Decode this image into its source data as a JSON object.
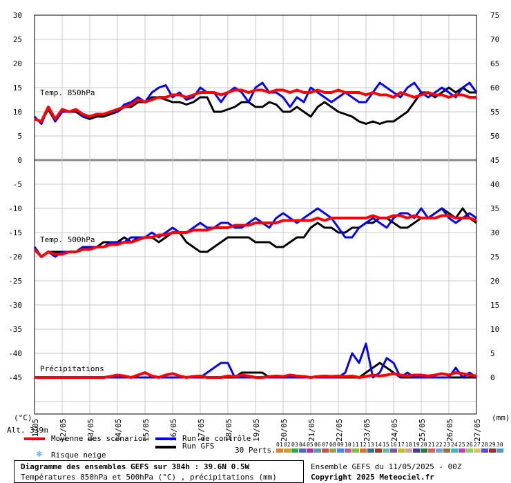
{
  "chart_data": {
    "type": "line",
    "left_axis_ticks": [
      "30",
      "25",
      "20",
      "15",
      "10",
      "5",
      "0",
      "-5",
      "-10",
      "-15",
      "-20",
      "-25",
      "-30",
      "-35",
      "-40",
      "-45"
    ],
    "right_axis_ticks": [
      "75",
      "70",
      "65",
      "60",
      "55",
      "50",
      "45",
      "40",
      "35",
      "30",
      "25",
      "20",
      "15",
      "10",
      "5",
      "0"
    ],
    "x_ticks": [
      "11/05",
      "12/05",
      "13/05",
      "14/05",
      "15/05",
      "16/05",
      "17/05",
      "18/05",
      "19/05",
      "20/05",
      "21/05",
      "22/05",
      "23/05",
      "24/05",
      "25/05",
      "26/05",
      "27/05"
    ],
    "x_unit_left": "(°C)",
    "x_unit_right": "(mm)",
    "ylim_left": [
      -45,
      30
    ],
    "panel_labels": {
      "t850": "Temp. 850hPa",
      "t500": "Temp. 500hPa",
      "precip": "Précipitations"
    },
    "altitude": "Alt. 339m",
    "series": [
      {
        "name": "Moyenne des scénarios",
        "color": "#ff0000",
        "t850": [
          8.5,
          8,
          11,
          8.5,
          10.5,
          10,
          10.5,
          9.5,
          9,
          9.5,
          9.5,
          10,
          10.5,
          11,
          11.5,
          12.5,
          12,
          12.5,
          13,
          13,
          13.5,
          13.5,
          13,
          13.5,
          14,
          14,
          14,
          13.5,
          14,
          14.5,
          14.5,
          14,
          14.5,
          14.5,
          14,
          14.5,
          14.5,
          14,
          14.5,
          14,
          14,
          14.5,
          14,
          14,
          14.5,
          14,
          14,
          14,
          13.5,
          14,
          13.5,
          13.5,
          13,
          14,
          13.5,
          13,
          13.5,
          14,
          13.5,
          13.5,
          13,
          13.5,
          13.5,
          13,
          13
        ],
        "t500": [
          -18.5,
          -20,
          -19,
          -19.5,
          -19.5,
          -19,
          -19,
          -18.5,
          -18.5,
          -18,
          -18,
          -17.5,
          -17.5,
          -17,
          -17,
          -16.5,
          -16,
          -16,
          -15.5,
          -15.5,
          -15,
          -15,
          -15,
          -14.5,
          -14.5,
          -14.5,
          -14,
          -14,
          -14,
          -13.5,
          -13.5,
          -13.5,
          -13,
          -13,
          -13,
          -13,
          -12.5,
          -12.5,
          -12.5,
          -12.5,
          -12.5,
          -12,
          -12.5,
          -12,
          -12,
          -12,
          -12,
          -12,
          -12,
          -11.5,
          -12,
          -12,
          -11.5,
          -11.5,
          -12,
          -11.5,
          -12,
          -12,
          -12,
          -11.5,
          -11.5,
          -12,
          -12,
          -12,
          -12.5
        ],
        "precip": [
          0,
          0,
          0,
          0,
          0,
          0,
          0,
          0,
          0,
          0,
          0,
          0.2,
          0.5,
          0.3,
          0,
          0.5,
          1,
          0.3,
          0,
          0.5,
          0.8,
          0.3,
          0,
          0.2,
          0.3,
          0,
          0,
          0,
          0.3,
          0.2,
          0.5,
          0.3,
          0,
          0,
          0.2,
          0.3,
          0.2,
          0.5,
          0.3,
          0.2,
          0,
          0.2,
          0.3,
          0.2,
          0.3,
          0.2,
          0.3,
          0,
          0.2,
          0.5,
          0.3,
          0.5,
          0.8,
          0.5,
          0.3,
          0.5,
          0.5,
          0.3,
          0.5,
          0.8,
          0.5,
          1,
          0.8,
          0.5,
          0.3
        ]
      },
      {
        "name": "Run de contrôle",
        "color": "#0000ff",
        "t850": [
          9,
          7.5,
          11,
          8,
          10,
          10,
          10.5,
          9,
          9,
          9.5,
          9.5,
          10,
          10,
          11.5,
          12,
          13,
          12,
          14,
          15,
          15.5,
          13,
          14,
          12.5,
          13,
          15,
          14,
          14,
          12,
          14,
          15,
          14,
          12,
          15,
          16,
          14,
          14,
          13,
          11,
          13,
          12,
          15,
          14,
          13,
          12,
          13,
          14,
          13,
          12,
          12,
          14,
          16,
          15,
          14,
          13,
          15,
          16,
          14,
          13,
          14,
          15,
          14,
          13,
          15,
          16,
          14
        ],
        "t500": [
          -18,
          -20,
          -19,
          -20,
          -19,
          -19,
          -19,
          -18,
          -18,
          -18,
          -18,
          -17,
          -17,
          -17,
          -16,
          -16,
          -16,
          -15,
          -16,
          -15,
          -14,
          -15,
          -15,
          -14,
          -13,
          -14,
          -14,
          -13,
          -13,
          -14,
          -14,
          -13,
          -12,
          -13,
          -14,
          -12,
          -11,
          -12,
          -13,
          -12,
          -11,
          -10,
          -11,
          -12,
          -14,
          -16,
          -16,
          -14,
          -13,
          -12,
          -13,
          -14,
          -12,
          -11,
          -11,
          -12,
          -10,
          -12,
          -11,
          -10,
          -12,
          -13,
          -12,
          -11,
          -12
        ],
        "precip": [
          0,
          0,
          0,
          0,
          0,
          0,
          0,
          0,
          0,
          0,
          0,
          0,
          0,
          0,
          0,
          0,
          0,
          0,
          0,
          0,
          0,
          0,
          0,
          0,
          0,
          1,
          2,
          3,
          3,
          0,
          0,
          0,
          0,
          0,
          0,
          0,
          0,
          0,
          0,
          0,
          0,
          0,
          0,
          0,
          0,
          1,
          5,
          3,
          7,
          0,
          1,
          4,
          3,
          0,
          1,
          0,
          0,
          0,
          0,
          0,
          0,
          2,
          0,
          1,
          0
        ]
      },
      {
        "name": "Run GFS",
        "color": "#000000",
        "t850": [
          8.5,
          8,
          10.5,
          8,
          10,
          10,
          10,
          9,
          8.5,
          9,
          9,
          9.5,
          10,
          11,
          11,
          12,
          12,
          13,
          13,
          12.5,
          12,
          12,
          11.5,
          12,
          13,
          13,
          10,
          10,
          10.5,
          11,
          12,
          12,
          11,
          11,
          12,
          11.5,
          10,
          10,
          11,
          10,
          9,
          11,
          12,
          11,
          10,
          9.5,
          9,
          8,
          7.5,
          8,
          7.5,
          8,
          8,
          9,
          10,
          12,
          14,
          14,
          13,
          14,
          15,
          14,
          15,
          14,
          14
        ],
        "t500": [
          -18,
          -20,
          -19,
          -19,
          -19,
          -19,
          -19,
          -18,
          -18,
          -18,
          -17,
          -17,
          -17,
          -16,
          -17,
          -16,
          -16,
          -16,
          -17,
          -16,
          -15,
          -15,
          -17,
          -18,
          -19,
          -19,
          -18,
          -17,
          -16,
          -16,
          -16,
          -16,
          -17,
          -17,
          -17,
          -18,
          -18,
          -17,
          -16,
          -16,
          -14,
          -13,
          -14,
          -14,
          -15,
          -15,
          -14,
          -14,
          -13,
          -13,
          -12,
          -12,
          -13,
          -14,
          -14,
          -13,
          -12,
          -12,
          -11,
          -10,
          -11,
          -12,
          -10,
          -12,
          -13
        ],
        "precip": [
          0,
          0,
          0,
          0,
          0,
          0,
          0,
          0,
          0,
          0,
          0,
          0,
          0,
          0,
          0,
          0,
          0,
          0,
          0,
          0,
          0,
          0,
          0,
          0,
          0,
          0,
          0,
          0,
          0,
          0,
          1,
          1,
          1,
          1,
          0,
          0,
          0,
          0,
          0,
          0,
          0,
          0,
          0,
          0,
          0,
          0,
          0,
          0,
          1,
          2,
          3,
          2,
          1,
          0,
          0,
          0,
          0,
          0,
          0,
          0,
          0,
          0,
          0,
          0,
          0
        ]
      }
    ]
  },
  "legend": {
    "mean": "Moyenne des scénarios",
    "control": "Run de contrôle",
    "gfs": "Run GFS",
    "snow": "Risque neige",
    "perts": "30 Perts.",
    "pert_ids": [
      "01",
      "02",
      "03",
      "04",
      "05",
      "06",
      "07",
      "08",
      "09",
      "10",
      "11",
      "12",
      "13",
      "14",
      "15",
      "16",
      "17",
      "18",
      "19",
      "20",
      "21",
      "22",
      "23",
      "24",
      "25",
      "26",
      "27",
      "28",
      "29",
      "30"
    ],
    "pert_colors": [
      "#e08030",
      "#d4a017",
      "#20b050",
      "#6060d0",
      "#b030b0",
      "#50a0a0",
      "#d05050",
      "#a0a040",
      "#4090e0",
      "#c06090",
      "#80c040",
      "#e07020",
      "#3070a0",
      "#a04020",
      "#60c0a0",
      "#8050c0",
      "#c0c020",
      "#d0a0a0",
      "#4040a0",
      "#208040",
      "#e06060",
      "#70a0e0",
      "#a07040",
      "#30c0c0",
      "#c040c0",
      "#90d060",
      "#e0c060",
      "#5050e0",
      "#a03030",
      "#40a0d0"
    ],
    "snow_color": "#3090ff",
    "control_color": "#0000ff",
    "gfs_color": "#000000",
    "mean_color": "#ff0000"
  },
  "footer": {
    "title_line1": "Diagramme des ensembles GEFS sur 384h : 39.6N 0.5W",
    "title_line2": "Températures 850hPa et 500hPa (°C) , précipitations (mm)",
    "run_info": "Ensemble GEFS du 11/05/2025 - 00Z",
    "copyright": "Copyright 2025 Meteociel.fr"
  }
}
